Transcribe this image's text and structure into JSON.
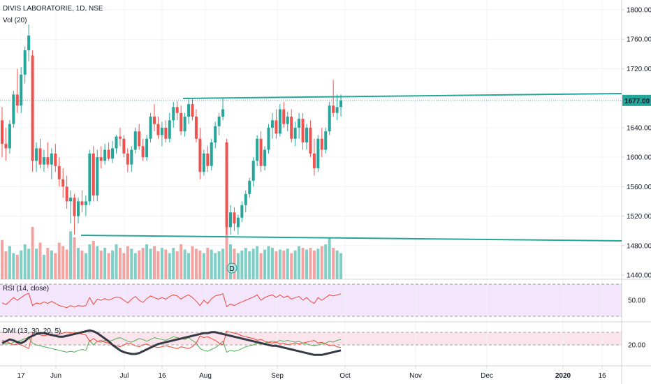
{
  "header": {
    "symbol": "DIVIS LABORATORIE, 1D, NSE",
    "volume_label": "Vol (20)"
  },
  "panes": {
    "rsi_label": "RSI (14, close)",
    "dmi_label": "DMI (13, 30, 20, 5)"
  },
  "event_marker": "D",
  "colors": {
    "up": "#26a69a",
    "down": "#ef5350",
    "accent": "#26a69a",
    "rsi": "#f44336",
    "dmi_adx": "#363a45",
    "dmi_plus": "#4caf50",
    "dmi_minus": "#f44336"
  },
  "chart_data": {
    "type": "candlestick",
    "price_axis": {
      "ticks": [
        "1800.00",
        "1760.00",
        "1720.00",
        "1680.00",
        "1640.00",
        "1600.00",
        "1560.00",
        "1520.00",
        "1480.00",
        "1440.00"
      ],
      "range": [
        1440,
        1800
      ]
    },
    "last_price": "1677.00",
    "time_axis": {
      "ticks": [
        "17",
        "Jun",
        "Jul",
        "16",
        "Aug",
        "Sep",
        "Oct",
        "Nov",
        "Dec",
        "2020",
        "16"
      ]
    },
    "rsi_axis": {
      "ticks": [
        "50.00"
      ],
      "range": [
        20,
        80
      ]
    },
    "dmi_axis": {
      "ticks": [
        "20.00"
      ],
      "range": [
        0,
        60
      ]
    },
    "candles": [
      {
        "o": 1650,
        "h": 1668,
        "l": 1600,
        "c": 1618
      },
      {
        "o": 1618,
        "h": 1640,
        "l": 1595,
        "c": 1612
      },
      {
        "o": 1612,
        "h": 1650,
        "l": 1605,
        "c": 1645
      },
      {
        "o": 1645,
        "h": 1690,
        "l": 1640,
        "c": 1685
      },
      {
        "o": 1685,
        "h": 1720,
        "l": 1660,
        "c": 1670
      },
      {
        "o": 1670,
        "h": 1722,
        "l": 1660,
        "c": 1712
      },
      {
        "o": 1712,
        "h": 1750,
        "l": 1700,
        "c": 1745
      },
      {
        "o": 1745,
        "h": 1780,
        "l": 1730,
        "c": 1765
      },
      {
        "o": 1738,
        "h": 1745,
        "l": 1580,
        "c": 1595
      },
      {
        "o": 1595,
        "h": 1620,
        "l": 1580,
        "c": 1612
      },
      {
        "o": 1612,
        "h": 1625,
        "l": 1585,
        "c": 1590
      },
      {
        "o": 1590,
        "h": 1610,
        "l": 1580,
        "c": 1600
      },
      {
        "o": 1600,
        "h": 1620,
        "l": 1585,
        "c": 1590
      },
      {
        "o": 1590,
        "h": 1612,
        "l": 1570,
        "c": 1605
      },
      {
        "o": 1605,
        "h": 1618,
        "l": 1580,
        "c": 1588
      },
      {
        "o": 1588,
        "h": 1600,
        "l": 1560,
        "c": 1570
      },
      {
        "o": 1570,
        "h": 1585,
        "l": 1545,
        "c": 1560
      },
      {
        "o": 1560,
        "h": 1575,
        "l": 1530,
        "c": 1540
      },
      {
        "o": 1540,
        "h": 1555,
        "l": 1510,
        "c": 1545
      },
      {
        "o": 1545,
        "h": 1550,
        "l": 1495,
        "c": 1520
      },
      {
        "o": 1520,
        "h": 1545,
        "l": 1510,
        "c": 1540
      },
      {
        "o": 1540,
        "h": 1555,
        "l": 1525,
        "c": 1535
      },
      {
        "o": 1535,
        "h": 1548,
        "l": 1520,
        "c": 1540
      },
      {
        "o": 1540,
        "h": 1610,
        "l": 1535,
        "c": 1605
      },
      {
        "o": 1605,
        "h": 1615,
        "l": 1540,
        "c": 1548
      },
      {
        "o": 1548,
        "h": 1610,
        "l": 1540,
        "c": 1600
      },
      {
        "o": 1600,
        "h": 1615,
        "l": 1585,
        "c": 1595
      },
      {
        "o": 1595,
        "h": 1618,
        "l": 1590,
        "c": 1610
      },
      {
        "o": 1610,
        "h": 1620,
        "l": 1595,
        "c": 1598
      },
      {
        "o": 1598,
        "h": 1622,
        "l": 1592,
        "c": 1612
      },
      {
        "o": 1612,
        "h": 1630,
        "l": 1605,
        "c": 1628
      },
      {
        "o": 1628,
        "h": 1640,
        "l": 1615,
        "c": 1625
      },
      {
        "o": 1625,
        "h": 1630,
        "l": 1600,
        "c": 1605
      },
      {
        "o": 1605,
        "h": 1612,
        "l": 1580,
        "c": 1590
      },
      {
        "o": 1590,
        "h": 1615,
        "l": 1580,
        "c": 1610
      },
      {
        "o": 1610,
        "h": 1640,
        "l": 1605,
        "c": 1635
      },
      {
        "o": 1635,
        "h": 1645,
        "l": 1610,
        "c": 1615
      },
      {
        "o": 1615,
        "h": 1625,
        "l": 1595,
        "c": 1600
      },
      {
        "o": 1600,
        "h": 1630,
        "l": 1595,
        "c": 1625
      },
      {
        "o": 1625,
        "h": 1660,
        "l": 1620,
        "c": 1655
      },
      {
        "o": 1655,
        "h": 1672,
        "l": 1635,
        "c": 1645
      },
      {
        "o": 1645,
        "h": 1655,
        "l": 1625,
        "c": 1630
      },
      {
        "o": 1630,
        "h": 1648,
        "l": 1615,
        "c": 1640
      },
      {
        "o": 1640,
        "h": 1650,
        "l": 1620,
        "c": 1625
      },
      {
        "o": 1625,
        "h": 1660,
        "l": 1620,
        "c": 1650
      },
      {
        "o": 1650,
        "h": 1675,
        "l": 1640,
        "c": 1668
      },
      {
        "o": 1668,
        "h": 1676,
        "l": 1650,
        "c": 1660
      },
      {
        "o": 1660,
        "h": 1670,
        "l": 1630,
        "c": 1635
      },
      {
        "o": 1635,
        "h": 1660,
        "l": 1628,
        "c": 1655
      },
      {
        "o": 1655,
        "h": 1680,
        "l": 1645,
        "c": 1672
      },
      {
        "o": 1672,
        "h": 1680,
        "l": 1650,
        "c": 1655
      },
      {
        "o": 1655,
        "h": 1665,
        "l": 1620,
        "c": 1625
      },
      {
        "o": 1625,
        "h": 1640,
        "l": 1570,
        "c": 1580
      },
      {
        "o": 1580,
        "h": 1610,
        "l": 1575,
        "c": 1605
      },
      {
        "o": 1605,
        "h": 1615,
        "l": 1580,
        "c": 1588
      },
      {
        "o": 1588,
        "h": 1625,
        "l": 1582,
        "c": 1620
      },
      {
        "o": 1620,
        "h": 1648,
        "l": 1612,
        "c": 1642
      },
      {
        "o": 1642,
        "h": 1660,
        "l": 1630,
        "c": 1655
      },
      {
        "o": 1655,
        "h": 1680,
        "l": 1650,
        "c": 1665
      },
      {
        "o": 1620,
        "h": 1625,
        "l": 1495,
        "c": 1505
      },
      {
        "o": 1505,
        "h": 1535,
        "l": 1495,
        "c": 1525
      },
      {
        "o": 1525,
        "h": 1532,
        "l": 1500,
        "c": 1510
      },
      {
        "o": 1505,
        "h": 1522,
        "l": 1495,
        "c": 1518
      },
      {
        "o": 1518,
        "h": 1540,
        "l": 1512,
        "c": 1535
      },
      {
        "o": 1535,
        "h": 1555,
        "l": 1525,
        "c": 1550
      },
      {
        "o": 1550,
        "h": 1572,
        "l": 1545,
        "c": 1568
      },
      {
        "o": 1568,
        "h": 1600,
        "l": 1560,
        "c": 1595
      },
      {
        "o": 1595,
        "h": 1630,
        "l": 1588,
        "c": 1625
      },
      {
        "o": 1625,
        "h": 1635,
        "l": 1580,
        "c": 1588
      },
      {
        "o": 1588,
        "h": 1615,
        "l": 1582,
        "c": 1610
      },
      {
        "o": 1610,
        "h": 1645,
        "l": 1605,
        "c": 1640
      },
      {
        "o": 1640,
        "h": 1660,
        "l": 1625,
        "c": 1650
      },
      {
        "o": 1650,
        "h": 1665,
        "l": 1625,
        "c": 1632
      },
      {
        "o": 1632,
        "h": 1672,
        "l": 1628,
        "c": 1665
      },
      {
        "o": 1665,
        "h": 1675,
        "l": 1640,
        "c": 1645
      },
      {
        "o": 1645,
        "h": 1662,
        "l": 1635,
        "c": 1655
      },
      {
        "o": 1655,
        "h": 1665,
        "l": 1620,
        "c": 1625
      },
      {
        "o": 1625,
        "h": 1648,
        "l": 1615,
        "c": 1640
      },
      {
        "o": 1640,
        "h": 1660,
        "l": 1625,
        "c": 1652
      },
      {
        "o": 1652,
        "h": 1660,
        "l": 1610,
        "c": 1620
      },
      {
        "o": 1620,
        "h": 1645,
        "l": 1610,
        "c": 1640
      },
      {
        "o": 1640,
        "h": 1650,
        "l": 1600,
        "c": 1605
      },
      {
        "o": 1605,
        "h": 1625,
        "l": 1575,
        "c": 1585
      },
      {
        "o": 1585,
        "h": 1630,
        "l": 1580,
        "c": 1625
      },
      {
        "o": 1625,
        "h": 1640,
        "l": 1600,
        "c": 1610
      },
      {
        "o": 1610,
        "h": 1640,
        "l": 1605,
        "c": 1635
      },
      {
        "o": 1635,
        "h": 1675,
        "l": 1630,
        "c": 1670
      },
      {
        "o": 1670,
        "h": 1705,
        "l": 1655,
        "c": 1660
      },
      {
        "o": 1660,
        "h": 1685,
        "l": 1650,
        "c": 1668
      },
      {
        "o": 1668,
        "h": 1685,
        "l": 1655,
        "c": 1677
      }
    ],
    "volume": [
      45,
      32,
      38,
      30,
      28,
      33,
      40,
      35,
      60,
      35,
      42,
      28,
      36,
      33,
      30,
      42,
      38,
      34,
      55,
      48,
      36,
      33,
      30,
      40,
      44,
      38,
      33,
      36,
      30,
      33,
      40,
      36,
      30,
      38,
      35,
      30,
      33,
      36,
      40,
      35,
      38,
      32,
      36,
      34,
      30,
      36,
      32,
      40,
      34,
      30,
      38,
      35,
      33,
      30,
      36,
      34,
      30,
      32,
      35,
      70,
      40,
      35,
      30,
      33,
      36,
      32,
      35,
      38,
      30,
      34,
      38,
      36,
      32,
      34,
      33,
      35,
      30,
      33,
      38,
      36,
      34,
      36,
      33,
      35,
      38,
      40,
      48,
      36,
      33,
      30
    ],
    "rsi": [
      45,
      42,
      48,
      55,
      50,
      55,
      60,
      63,
      40,
      45,
      43,
      47,
      44,
      48,
      44,
      40,
      38,
      36,
      40,
      37,
      40,
      39,
      40,
      55,
      42,
      52,
      50,
      53,
      50,
      53,
      56,
      55,
      50,
      45,
      52,
      57,
      50,
      46,
      53,
      58,
      55,
      52,
      55,
      52,
      57,
      60,
      58,
      52,
      57,
      60,
      55,
      48,
      40,
      50,
      44,
      53,
      58,
      60,
      62,
      38,
      43,
      40,
      44,
      47,
      50,
      53,
      56,
      60,
      50,
      55,
      58,
      60,
      55,
      60,
      55,
      58,
      52,
      55,
      57,
      50,
      55,
      48,
      44,
      55,
      50,
      55,
      60,
      58,
      60,
      62
    ],
    "dmi_adx": [
      22,
      24,
      26,
      25,
      23,
      22,
      24,
      28,
      30,
      32,
      33,
      33,
      32,
      31,
      30,
      29,
      29,
      30,
      31,
      32,
      33,
      34,
      35,
      36,
      35,
      33,
      30,
      27,
      24,
      20,
      17,
      14,
      12,
      11,
      10,
      10,
      11,
      13,
      15,
      17,
      19,
      21,
      22,
      23,
      24,
      25,
      26,
      27,
      28,
      29,
      30,
      31,
      32,
      33,
      33,
      34,
      34,
      33,
      32,
      31,
      30,
      29,
      28,
      27,
      26,
      25,
      24,
      23,
      22,
      21,
      20,
      19,
      19,
      18,
      17,
      16,
      15,
      14,
      13,
      12,
      11,
      10,
      9,
      9,
      9,
      10,
      11,
      12,
      13,
      14
    ],
    "dmi_plus": [
      20,
      22,
      21,
      23,
      24,
      25,
      27,
      28,
      22,
      20,
      19,
      18,
      17,
      16,
      15,
      14,
      13,
      12,
      13,
      12,
      14,
      15,
      14,
      25,
      20,
      24,
      23,
      25,
      24,
      25,
      27,
      28,
      26,
      24,
      23,
      25,
      27,
      26,
      24,
      26,
      28,
      27,
      26,
      25,
      27,
      29,
      28,
      27,
      26,
      28,
      25,
      22,
      16,
      14,
      13,
      15,
      17,
      20,
      24,
      12,
      14,
      13,
      14,
      16,
      18,
      19,
      20,
      22,
      21,
      22,
      23,
      24,
      23,
      25,
      24,
      25,
      24,
      23,
      24,
      22,
      21,
      20,
      19,
      20,
      21,
      22,
      24,
      23,
      25,
      26
    ],
    "dmi_minus": [
      25,
      24,
      22,
      20,
      21,
      20,
      18,
      16,
      33,
      32,
      31,
      30,
      31,
      30,
      31,
      32,
      33,
      34,
      33,
      34,
      33,
      32,
      31,
      24,
      27,
      24,
      25,
      23,
      22,
      20,
      19,
      18,
      20,
      22,
      21,
      19,
      18,
      20,
      21,
      19,
      18,
      17,
      18,
      19,
      18,
      17,
      16,
      18,
      17,
      16,
      18,
      22,
      30,
      28,
      29,
      27,
      25,
      22,
      20,
      35,
      34,
      33,
      32,
      30,
      29,
      28,
      27,
      25,
      26,
      24,
      23,
      22,
      23,
      21,
      22,
      20,
      21,
      22,
      21,
      22,
      23,
      24,
      25,
      22,
      23,
      21,
      19,
      20,
      18,
      17
    ]
  }
}
